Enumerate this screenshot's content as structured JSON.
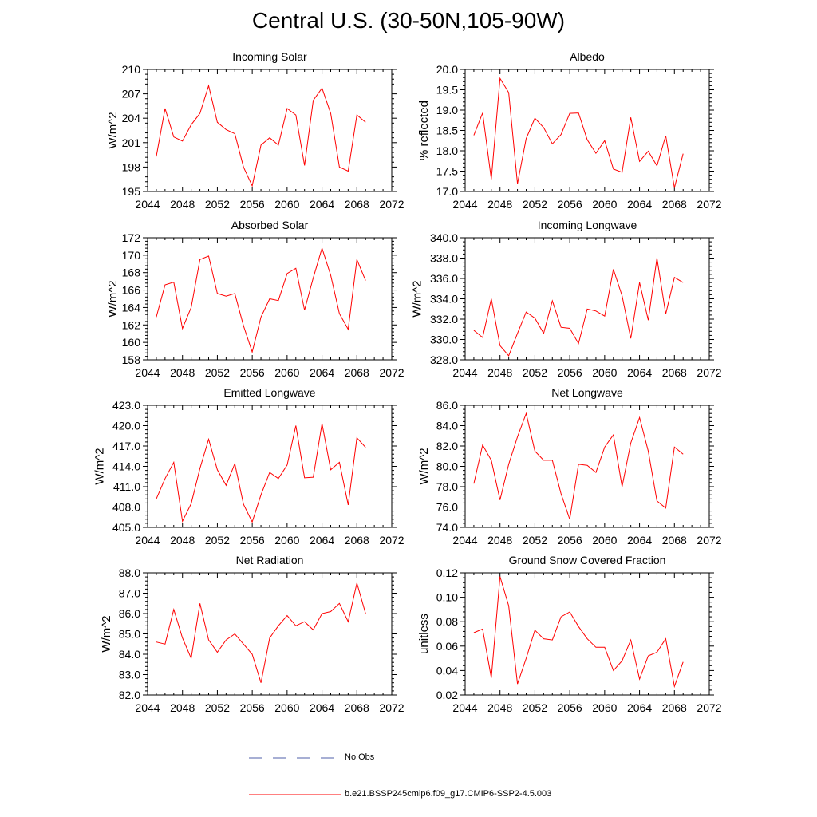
{
  "page_title": "Central U.S. (30-50N,105-90W)",
  "colors": {
    "model": "#ff0000",
    "obs": "#4f5fa8",
    "axis": "#000000"
  },
  "legend": {
    "obs_label": "No Obs",
    "model_label": "b.e21.BSSP245cmip6.f09_g17.CMIP6-SSP2-4.5.003"
  },
  "chart_data": [
    {
      "type": "line",
      "title": "Incoming Solar",
      "xlabel": "",
      "ylabel": "W/m^2",
      "xlim": [
        2044,
        2072
      ],
      "ylim": [
        195,
        210
      ],
      "xticks": [
        2044,
        2048,
        2052,
        2056,
        2060,
        2064,
        2068,
        2072
      ],
      "xtick_labels": [
        "2044",
        "2048",
        "2052",
        "2056",
        "2060",
        "2064",
        "2068",
        "2072"
      ],
      "yticks": [
        195,
        198,
        201,
        204,
        207,
        210
      ],
      "ytick_labels": [
        "195",
        "198",
        "201",
        "204",
        "207",
        "210"
      ],
      "x": [
        2045,
        2046,
        2047,
        2048,
        2049,
        2050,
        2051,
        2052,
        2053,
        2054,
        2055,
        2056,
        2057,
        2058,
        2059,
        2060,
        2061,
        2062,
        2063,
        2064,
        2065,
        2066,
        2067,
        2068,
        2069
      ],
      "series": [
        {
          "name": "b.e21.BSSP245cmip6.f09_g17.CMIP6-SSP2-4.5.003",
          "values": [
            199.3,
            205.2,
            201.7,
            201.2,
            203.2,
            204.6,
            208.0,
            203.5,
            202.6,
            202.1,
            198.0,
            195.7,
            200.7,
            201.6,
            200.7,
            205.2,
            204.4,
            198.2,
            206.2,
            207.7,
            204.6,
            198.0,
            197.5,
            204.4,
            203.5
          ]
        }
      ]
    },
    {
      "type": "line",
      "title": "Albedo",
      "xlabel": "",
      "ylabel": "% reflected",
      "xlim": [
        2044,
        2072
      ],
      "ylim": [
        17.0,
        20.0
      ],
      "xticks": [
        2044,
        2048,
        2052,
        2056,
        2060,
        2064,
        2068,
        2072
      ],
      "xtick_labels": [
        "2044",
        "2048",
        "2052",
        "2056",
        "2060",
        "2064",
        "2068",
        "2072"
      ],
      "yticks": [
        17.0,
        17.5,
        18.0,
        18.5,
        19.0,
        19.5,
        20.0
      ],
      "ytick_labels": [
        "17.0",
        "17.5",
        "18.0",
        "18.5",
        "19.0",
        "19.5",
        "20.0"
      ],
      "x": [
        2045,
        2046,
        2047,
        2048,
        2049,
        2050,
        2051,
        2052,
        2053,
        2054,
        2055,
        2056,
        2057,
        2058,
        2059,
        2060,
        2061,
        2062,
        2063,
        2064,
        2065,
        2066,
        2067,
        2068,
        2069
      ],
      "series": [
        {
          "name": "b.e21.BSSP245cmip6.f09_g17.CMIP6-SSP2-4.5.003",
          "values": [
            18.38,
            18.93,
            17.3,
            19.78,
            19.43,
            17.19,
            18.3,
            18.8,
            18.57,
            18.17,
            18.4,
            18.92,
            18.93,
            18.27,
            17.94,
            18.25,
            17.55,
            17.47,
            18.82,
            17.74,
            17.99,
            17.63,
            18.37,
            17.09,
            17.93
          ]
        }
      ]
    },
    {
      "type": "line",
      "title": "Absorbed Solar",
      "xlabel": "",
      "ylabel": "W/m^2",
      "xlim": [
        2044,
        2072
      ],
      "ylim": [
        158,
        172
      ],
      "xticks": [
        2044,
        2048,
        2052,
        2056,
        2060,
        2064,
        2068,
        2072
      ],
      "xtick_labels": [
        "2044",
        "2048",
        "2052",
        "2056",
        "2060",
        "2064",
        "2068",
        "2072"
      ],
      "yticks": [
        158,
        160,
        162,
        164,
        166,
        168,
        170,
        172
      ],
      "ytick_labels": [
        "158",
        "160",
        "162",
        "164",
        "166",
        "168",
        "170",
        "172"
      ],
      "x": [
        2045,
        2046,
        2047,
        2048,
        2049,
        2050,
        2051,
        2052,
        2053,
        2054,
        2055,
        2056,
        2057,
        2058,
        2059,
        2060,
        2061,
        2062,
        2063,
        2064,
        2065,
        2066,
        2067,
        2068,
        2069
      ],
      "series": [
        {
          "name": "b.e21.BSSP245cmip6.f09_g17.CMIP6-SSP2-4.5.003",
          "values": [
            162.9,
            166.6,
            166.9,
            161.6,
            164.0,
            169.5,
            169.9,
            165.6,
            165.3,
            165.6,
            161.9,
            158.9,
            162.9,
            165.0,
            164.8,
            167.9,
            168.5,
            163.7,
            167.4,
            170.8,
            167.7,
            163.3,
            161.5,
            169.5,
            167.1
          ]
        }
      ]
    },
    {
      "type": "line",
      "title": "Incoming Longwave",
      "xlabel": "",
      "ylabel": "W/m^2",
      "xlim": [
        2044,
        2072
      ],
      "ylim": [
        328.0,
        340.0
      ],
      "xticks": [
        2044,
        2048,
        2052,
        2056,
        2060,
        2064,
        2068,
        2072
      ],
      "xtick_labels": [
        "2044",
        "2048",
        "2052",
        "2056",
        "2060",
        "2064",
        "2068",
        "2072"
      ],
      "yticks": [
        328,
        330,
        332,
        334,
        336,
        338,
        340
      ],
      "ytick_labels": [
        "328.0",
        "330.0",
        "332.0",
        "334.0",
        "336.0",
        "338.0",
        "340.0"
      ],
      "x": [
        2045,
        2046,
        2047,
        2048,
        2049,
        2050,
        2051,
        2052,
        2053,
        2054,
        2055,
        2056,
        2057,
        2058,
        2059,
        2060,
        2061,
        2062,
        2063,
        2064,
        2065,
        2066,
        2067,
        2068,
        2069
      ],
      "series": [
        {
          "name": "b.e21.BSSP245cmip6.f09_g17.CMIP6-SSP2-4.5.003",
          "values": [
            330.9,
            330.2,
            334.0,
            329.4,
            328.4,
            330.6,
            332.7,
            332.1,
            330.6,
            333.8,
            331.2,
            331.1,
            329.6,
            333.0,
            332.8,
            332.3,
            336.9,
            334.3,
            330.1,
            335.6,
            331.9,
            338.0,
            332.5,
            336.1,
            335.6
          ]
        }
      ]
    },
    {
      "type": "line",
      "title": "Emitted Longwave",
      "xlabel": "",
      "ylabel": "W/m^2",
      "xlim": [
        2044,
        2072
      ],
      "ylim": [
        405.0,
        423.0
      ],
      "xticks": [
        2044,
        2048,
        2052,
        2056,
        2060,
        2064,
        2068,
        2072
      ],
      "xtick_labels": [
        "2044",
        "2048",
        "2052",
        "2056",
        "2060",
        "2064",
        "2068",
        "2072"
      ],
      "yticks": [
        405,
        408,
        411,
        414,
        417,
        420,
        423
      ],
      "ytick_labels": [
        "405.0",
        "408.0",
        "411.0",
        "414.0",
        "417.0",
        "420.0",
        "423.0"
      ],
      "x": [
        2045,
        2046,
        2047,
        2048,
        2049,
        2050,
        2051,
        2052,
        2053,
        2054,
        2055,
        2056,
        2057,
        2058,
        2059,
        2060,
        2061,
        2062,
        2063,
        2064,
        2065,
        2066,
        2067,
        2068,
        2069
      ],
      "series": [
        {
          "name": "b.e21.BSSP245cmip6.f09_g17.CMIP6-SSP2-4.5.003",
          "values": [
            409.2,
            412.2,
            414.6,
            405.9,
            408.5,
            413.7,
            418.0,
            413.5,
            411.2,
            414.4,
            408.4,
            405.8,
            409.8,
            413.1,
            412.2,
            414.2,
            420.0,
            412.3,
            412.4,
            420.3,
            413.5,
            414.6,
            408.3,
            418.2,
            416.8
          ]
        }
      ]
    },
    {
      "type": "line",
      "title": "Net Longwave",
      "xlabel": "",
      "ylabel": "W/m^2",
      "xlim": [
        2044,
        2072
      ],
      "ylim": [
        74.0,
        86.0
      ],
      "xticks": [
        2044,
        2048,
        2052,
        2056,
        2060,
        2064,
        2068,
        2072
      ],
      "xtick_labels": [
        "2044",
        "2048",
        "2052",
        "2056",
        "2060",
        "2064",
        "2068",
        "2072"
      ],
      "yticks": [
        74,
        76,
        78,
        80,
        82,
        84,
        86
      ],
      "ytick_labels": [
        "74.0",
        "76.0",
        "78.0",
        "80.0",
        "82.0",
        "84.0",
        "86.0"
      ],
      "x": [
        2045,
        2046,
        2047,
        2048,
        2049,
        2050,
        2051,
        2052,
        2053,
        2054,
        2055,
        2056,
        2057,
        2058,
        2059,
        2060,
        2061,
        2062,
        2063,
        2064,
        2065,
        2066,
        2067,
        2068,
        2069
      ],
      "series": [
        {
          "name": "b.e21.BSSP245cmip6.f09_g17.CMIP6-SSP2-4.5.003",
          "values": [
            78.3,
            82.1,
            80.6,
            76.7,
            80.2,
            82.9,
            85.2,
            81.5,
            80.6,
            80.6,
            77.3,
            74.8,
            80.2,
            80.1,
            79.4,
            81.9,
            83.1,
            78.0,
            82.3,
            84.8,
            81.5,
            76.6,
            75.9,
            81.9,
            81.2
          ]
        }
      ]
    },
    {
      "type": "line",
      "title": "Net Radiation",
      "xlabel": "",
      "ylabel": "W/m^2",
      "xlim": [
        2044,
        2072
      ],
      "ylim": [
        82.0,
        88.0
      ],
      "xticks": [
        2044,
        2048,
        2052,
        2056,
        2060,
        2064,
        2068,
        2072
      ],
      "xtick_labels": [
        "2044",
        "2048",
        "2052",
        "2056",
        "2060",
        "2064",
        "2068",
        "2072"
      ],
      "yticks": [
        82,
        83,
        84,
        85,
        86,
        87,
        88
      ],
      "ytick_labels": [
        "82.0",
        "83.0",
        "84.0",
        "85.0",
        "86.0",
        "87.0",
        "88.0"
      ],
      "x": [
        2045,
        2046,
        2047,
        2048,
        2049,
        2050,
        2051,
        2052,
        2053,
        2054,
        2055,
        2056,
        2057,
        2058,
        2059,
        2060,
        2061,
        2062,
        2063,
        2064,
        2065,
        2066,
        2067,
        2068,
        2069
      ],
      "series": [
        {
          "name": "b.e21.BSSP245cmip6.f09_g17.CMIP6-SSP2-4.5.003",
          "values": [
            84.6,
            84.5,
            86.2,
            84.8,
            83.8,
            86.5,
            84.7,
            84.1,
            84.7,
            85.0,
            84.5,
            84.0,
            82.6,
            84.8,
            85.4,
            85.9,
            85.4,
            85.6,
            85.2,
            86.0,
            86.1,
            86.5,
            85.6,
            87.5,
            86.0
          ]
        }
      ]
    },
    {
      "type": "line",
      "title": "Ground Snow Covered Fraction",
      "xlabel": "",
      "ylabel": "unitless",
      "xlim": [
        2044,
        2072
      ],
      "ylim": [
        0.02,
        0.12
      ],
      "xticks": [
        2044,
        2048,
        2052,
        2056,
        2060,
        2064,
        2068,
        2072
      ],
      "xtick_labels": [
        "2044",
        "2048",
        "2052",
        "2056",
        "2060",
        "2064",
        "2068",
        "2072"
      ],
      "yticks": [
        0.02,
        0.04,
        0.06,
        0.08,
        0.1,
        0.12
      ],
      "ytick_labels": [
        "0.02",
        "0.04",
        "0.06",
        "0.08",
        "0.10",
        "0.12"
      ],
      "x": [
        2045,
        2046,
        2047,
        2048,
        2049,
        2050,
        2051,
        2052,
        2053,
        2054,
        2055,
        2056,
        2057,
        2058,
        2059,
        2060,
        2061,
        2062,
        2063,
        2064,
        2065,
        2066,
        2067,
        2068,
        2069
      ],
      "series": [
        {
          "name": "b.e21.BSSP245cmip6.f09_g17.CMIP6-SSP2-4.5.003",
          "values": [
            0.071,
            0.074,
            0.034,
            0.117,
            0.093,
            0.029,
            0.05,
            0.073,
            0.066,
            0.065,
            0.084,
            0.088,
            0.076,
            0.066,
            0.059,
            0.059,
            0.04,
            0.048,
            0.065,
            0.033,
            0.052,
            0.055,
            0.066,
            0.027,
            0.047
          ]
        }
      ]
    }
  ]
}
